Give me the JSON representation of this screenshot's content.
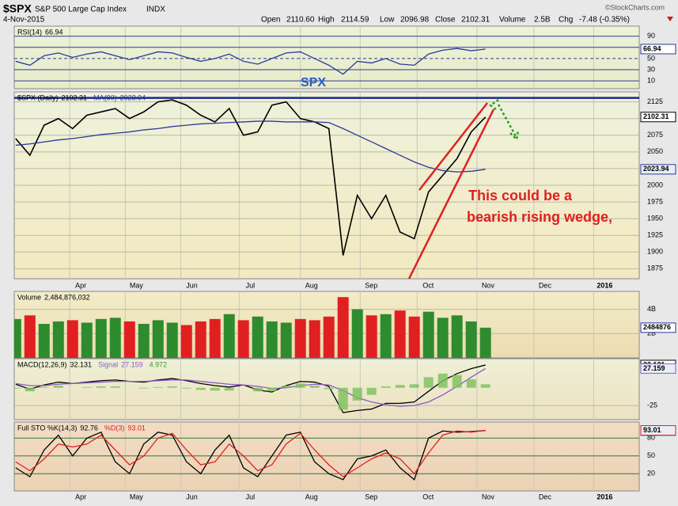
{
  "header": {
    "symbol": "$SPX",
    "name": "S&P 500 Large Cap Index",
    "exchange": "INDX",
    "date": "4-Nov-2015",
    "copyright": "©StockCharts.com",
    "stats": [
      {
        "label": "Open",
        "value": "2110.60"
      },
      {
        "label": "High",
        "value": "2114.59"
      },
      {
        "label": "Low",
        "value": "2096.98"
      },
      {
        "label": "Close",
        "value": "2102.31"
      },
      {
        "label": "Volume",
        "value": "2.5B"
      },
      {
        "label": "Chg",
        "value": "-7.48 (-0.35%)"
      }
    ]
  },
  "x_axis": {
    "xlim": [
      -0.1,
      43.8
    ],
    "xticks": [
      {
        "value": 3.8,
        "label": "Apr"
      },
      {
        "value": 7.7,
        "label": "May"
      },
      {
        "value": 11.6,
        "label": "Jun"
      },
      {
        "value": 15.7,
        "label": "Jul"
      },
      {
        "value": 20,
        "label": "Aug"
      },
      {
        "value": 24.2,
        "label": "Sep"
      },
      {
        "value": 28.2,
        "label": "Oct"
      },
      {
        "value": 32.4,
        "label": "Nov"
      },
      {
        "value": 36.4,
        "label": "Dec"
      },
      {
        "value": 40.6,
        "label": "2016"
      }
    ]
  },
  "chart_data": [
    {
      "type": "line",
      "ylim": [
        -4,
        108
      ],
      "yticks": [
        90,
        70,
        50,
        30,
        10
      ],
      "grid_color": "#2a3a9a",
      "series": [
        {
          "name": "RSI(14)",
          "color": "#2a3a9a",
          "values": [
            45,
            38,
            55,
            60,
            52,
            58,
            62,
            55,
            48,
            55,
            62,
            60,
            52,
            45,
            50,
            58,
            45,
            40,
            50,
            60,
            62,
            50,
            38,
            22,
            45,
            42,
            50,
            40,
            38,
            58,
            65,
            68,
            64,
            66.94
          ]
        }
      ]
    },
    {
      "type": "line",
      "ylim": [
        1860,
        2140
      ],
      "yticks": [
        1875,
        1900,
        1925,
        1950,
        1975,
        2000,
        2025,
        2050,
        2075,
        2100,
        2125
      ],
      "grid_color": "#b8b8a8",
      "resistance": 2131,
      "annotations": [
        "SPX",
        "This  could be a",
        "bearish rising wedge,"
      ],
      "series": [
        {
          "name": "$SPX (Daily)",
          "color": "#000000",
          "values": [
            2070,
            2045,
            2090,
            2100,
            2085,
            2105,
            2110,
            2115,
            2100,
            2110,
            2125,
            2128,
            2120,
            2105,
            2095,
            2115,
            2075,
            2080,
            2120,
            2125,
            2100,
            2095,
            2085,
            1895,
            1985,
            1950,
            1985,
            1930,
            1920,
            1990,
            2015,
            2040,
            2080,
            2102.31
          ]
        },
        {
          "name": "MA(80)",
          "color": "#2a3a9a",
          "values": [
            2060,
            2062,
            2065,
            2068,
            2070,
            2073,
            2076,
            2078,
            2080,
            2083,
            2085,
            2088,
            2090,
            2092,
            2093,
            2094,
            2095,
            2096,
            2096,
            2095,
            2095,
            2095,
            2094,
            2085,
            2075,
            2065,
            2055,
            2045,
            2035,
            2027,
            2022,
            2020,
            2021,
            2023.94
          ]
        }
      ]
    },
    {
      "type": "bar",
      "ylim": [
        0,
        5470000000
      ],
      "yticks": [
        {
          "value": 4000000000,
          "label": "4B"
        },
        {
          "value": 2000000000,
          "label": "2B"
        }
      ],
      "grid_color": "#b8b8a8",
      "up_color": "#2e8b2e",
      "down_color": "#e02020",
      "axis_label": "2484876",
      "series": [
        {
          "name": "Volume",
          "values": [
            3200000000,
            3500000000,
            2800000000,
            3000000000,
            3100000000,
            2900000000,
            3200000000,
            3300000000,
            3000000000,
            2800000000,
            3100000000,
            2900000000,
            2700000000,
            3000000000,
            3200000000,
            3600000000,
            3100000000,
            3400000000,
            3000000000,
            2900000000,
            3200000000,
            3100000000,
            3400000000,
            5000000000,
            4000000000,
            3500000000,
            3600000000,
            3900000000,
            3400000000,
            3800000000,
            3300000000,
            3500000000,
            3000000000,
            2484876032
          ],
          "value_labels": [
            null,
            null,
            null,
            null,
            null,
            null,
            null,
            null,
            null,
            null,
            null,
            null,
            null,
            null,
            null,
            null,
            null,
            null,
            null,
            null,
            null,
            null,
            null,
            null,
            null,
            null,
            null,
            null,
            null,
            null,
            null,
            null,
            null,
            "2,484,876,032"
          ]
        }
      ]
    },
    {
      "type": "line",
      "ylim": [
        -45,
        41
      ],
      "yticks": [
        -25
      ],
      "grid_color": "#b8b8a8",
      "series": [
        {
          "name": "MACD(12,26,9)",
          "color": "#000000",
          "values": [
            5,
            -2,
            4,
            8,
            6,
            8,
            10,
            11,
            9,
            8,
            11,
            13,
            10,
            6,
            3,
            1,
            4,
            -3,
            -6,
            3,
            9,
            8,
            2,
            -35,
            -32,
            -30,
            -22,
            -22,
            -20,
            -5,
            10,
            20,
            27,
            32.131
          ]
        },
        {
          "name": "Signal",
          "color": "#8a5ac8",
          "values": [
            6,
            3,
            3,
            5,
            6,
            7,
            8,
            9,
            9,
            9,
            10,
            11,
            11,
            9,
            7,
            5,
            4,
            2,
            -1,
            0,
            3,
            5,
            4,
            -4,
            -14,
            -20,
            -24,
            -26,
            -25,
            -20,
            -10,
            2,
            15,
            27.159
          ]
        },
        {
          "name": "Histogram",
          "type": "bar",
          "color": "#7cbf5c",
          "values": [
            -1,
            -5,
            1,
            3,
            0,
            1,
            2,
            2,
            0,
            -1,
            1,
            2,
            -1,
            -3,
            -4,
            -4,
            0,
            -5,
            -5,
            3,
            6,
            3,
            -2,
            -31,
            -18,
            -10,
            2,
            4,
            5,
            15,
            20,
            18,
            12,
            4.972
          ]
        }
      ]
    },
    {
      "type": "line",
      "ylim": [
        -9,
        107
      ],
      "yticks": [
        80,
        50,
        20
      ],
      "grid_color": "#2f7a2f",
      "series": [
        {
          "name": "Full STO %K(14,3)",
          "color": "#000000",
          "values": [
            30,
            15,
            60,
            85,
            50,
            80,
            90,
            40,
            20,
            70,
            90,
            85,
            40,
            20,
            60,
            85,
            30,
            15,
            50,
            85,
            90,
            40,
            20,
            10,
            45,
            50,
            60,
            30,
            10,
            80,
            92,
            90,
            91,
            92.76
          ]
        },
        {
          "name": "%D(3)",
          "color": "#e02020",
          "values": [
            40,
            25,
            45,
            70,
            65,
            70,
            85,
            60,
            35,
            50,
            80,
            88,
            60,
            35,
            40,
            70,
            50,
            25,
            35,
            70,
            88,
            60,
            35,
            15,
            30,
            45,
            55,
            45,
            20,
            55,
            85,
            92,
            90,
            93.01
          ]
        }
      ]
    }
  ]
}
